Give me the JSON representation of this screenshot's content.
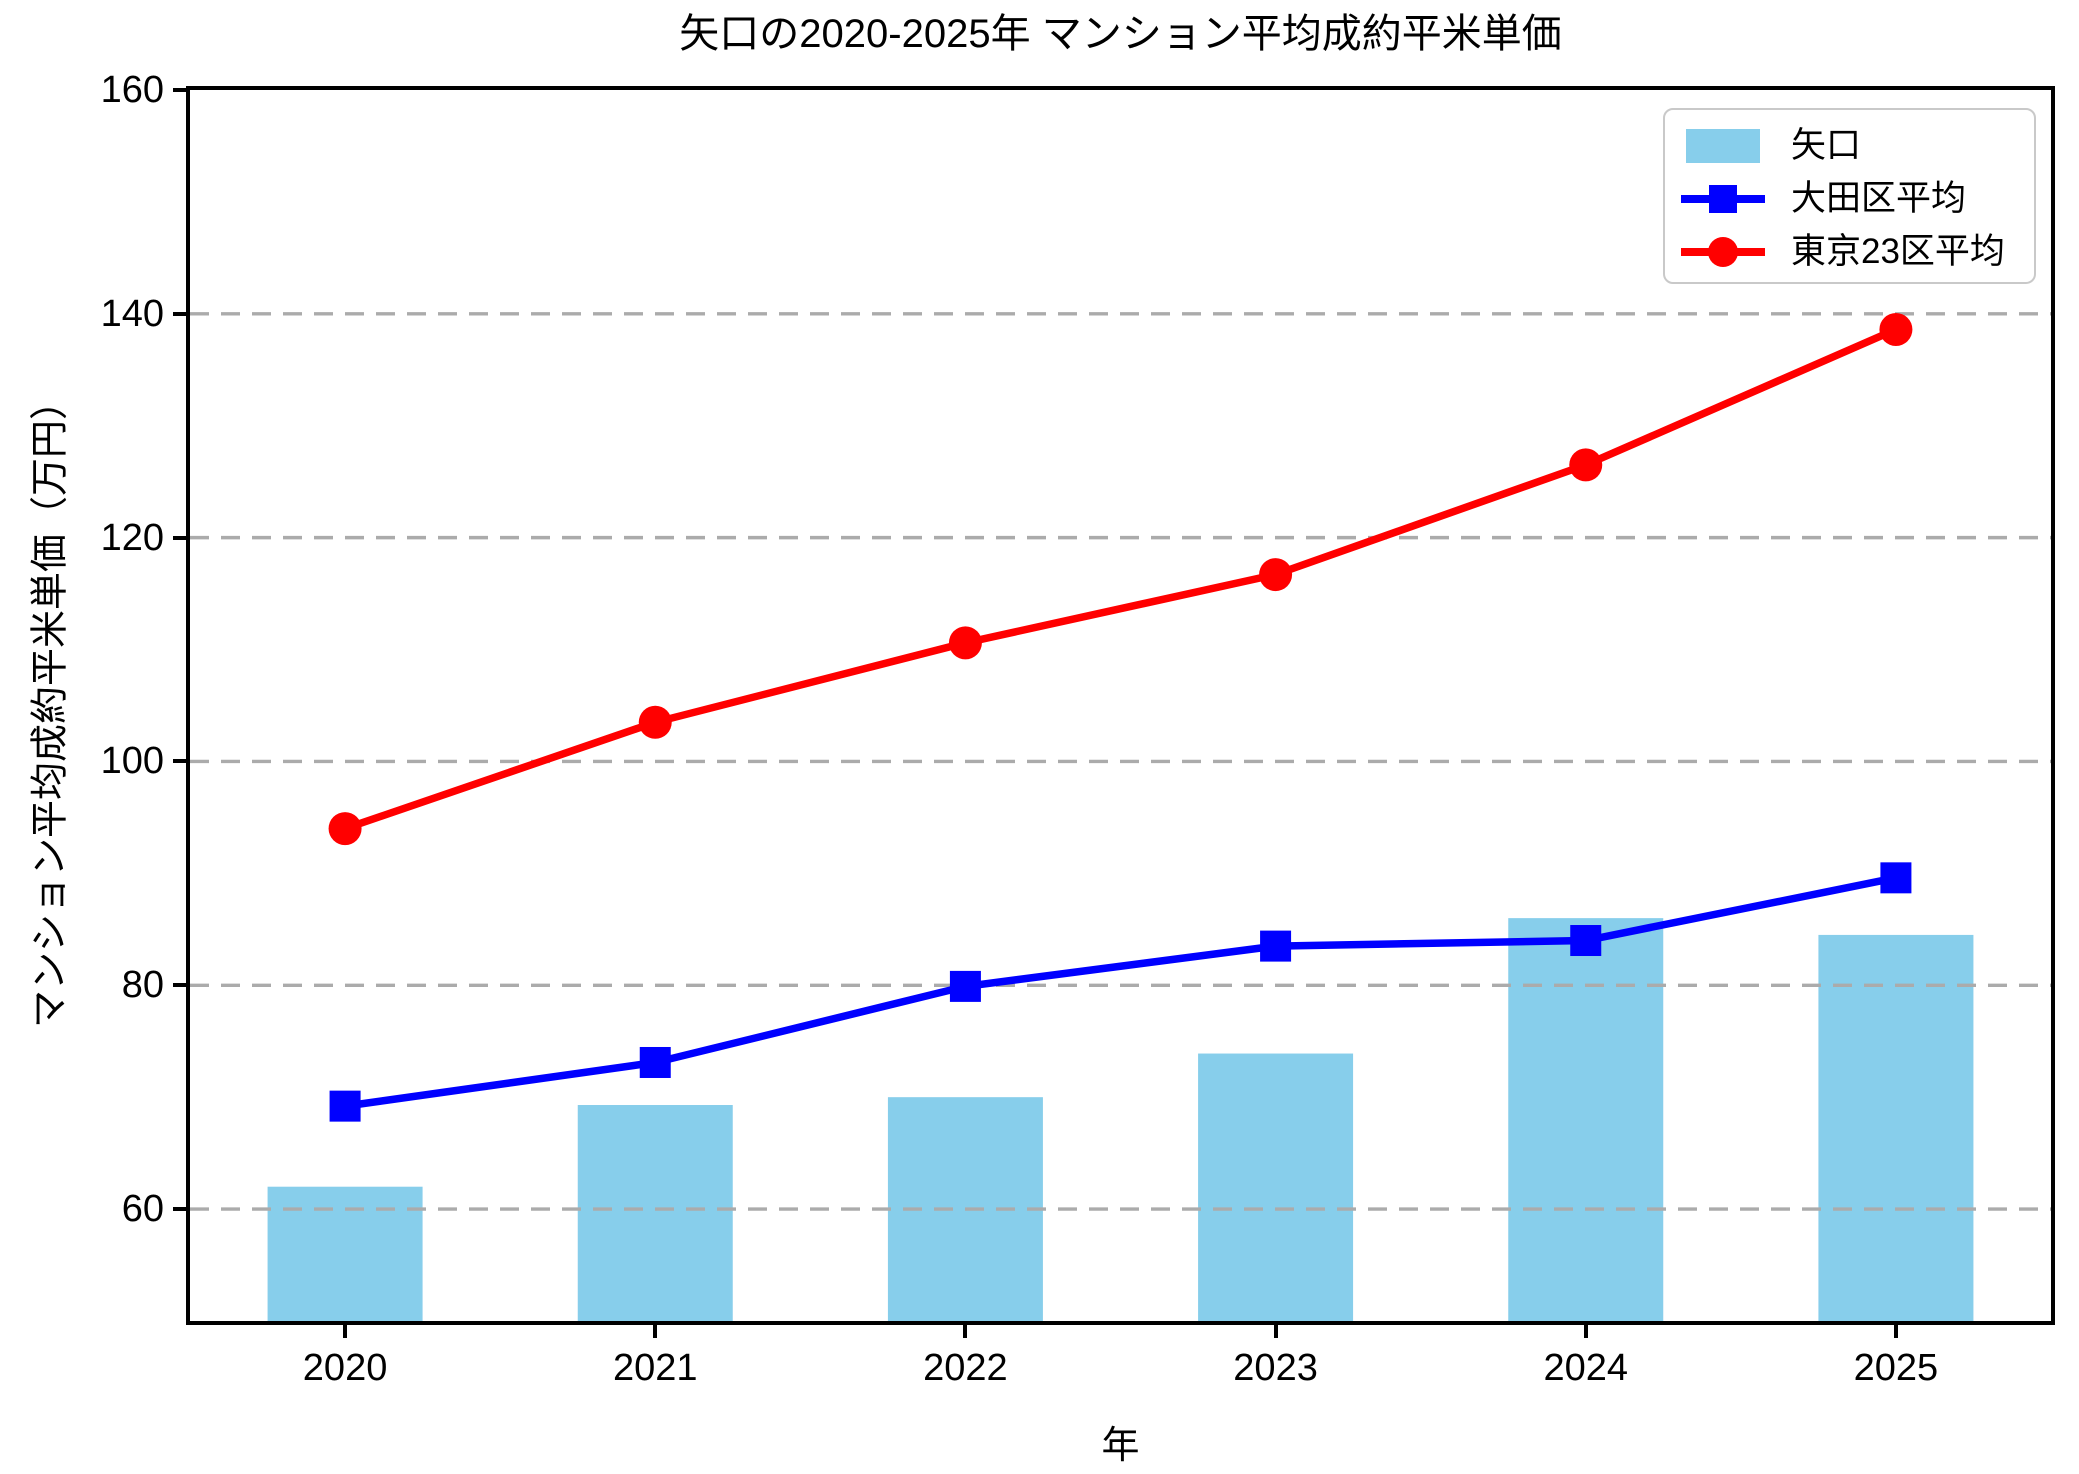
{
  "chart_data": {
    "type": "combo",
    "title": "矢口の2020-2025年 マンション平均成約平米単価",
    "xlabel": "年",
    "ylabel": "マンション平均成約平米単価（万円）",
    "categories": [
      "2020",
      "2021",
      "2022",
      "2023",
      "2024",
      "2025"
    ],
    "series": [
      {
        "name": "矢口",
        "type": "bar",
        "color": "#87CEEB",
        "values": [
          62.0,
          69.3,
          70.0,
          73.9,
          86.0,
          84.5
        ]
      },
      {
        "name": "大田区平均",
        "type": "line",
        "marker": "square",
        "color": "#0000FF",
        "values": [
          69.2,
          73.1,
          79.9,
          83.5,
          84.0,
          89.6
        ]
      },
      {
        "name": "東京23区平均",
        "type": "line",
        "marker": "circle",
        "color": "#FF0000",
        "values": [
          94.0,
          103.5,
          110.6,
          116.7,
          126.5,
          138.6
        ]
      }
    ],
    "ylim": [
      50,
      160
    ],
    "yticks": [
      60,
      80,
      100,
      120,
      140,
      160
    ],
    "grid": {
      "axis": "y",
      "style": "dashed",
      "color": "#ababab"
    },
    "legend": {
      "position": "upper right",
      "labels": [
        "矢口",
        "大田区平均",
        "東京23区平均"
      ]
    },
    "colors": {
      "background": "#FFFFFF",
      "text": "#000000",
      "spine": "#000000",
      "bar": "#87CEEB",
      "ota_line": "#0000FF",
      "tokyo23_line": "#FF0000",
      "grid": "#ababab"
    }
  }
}
